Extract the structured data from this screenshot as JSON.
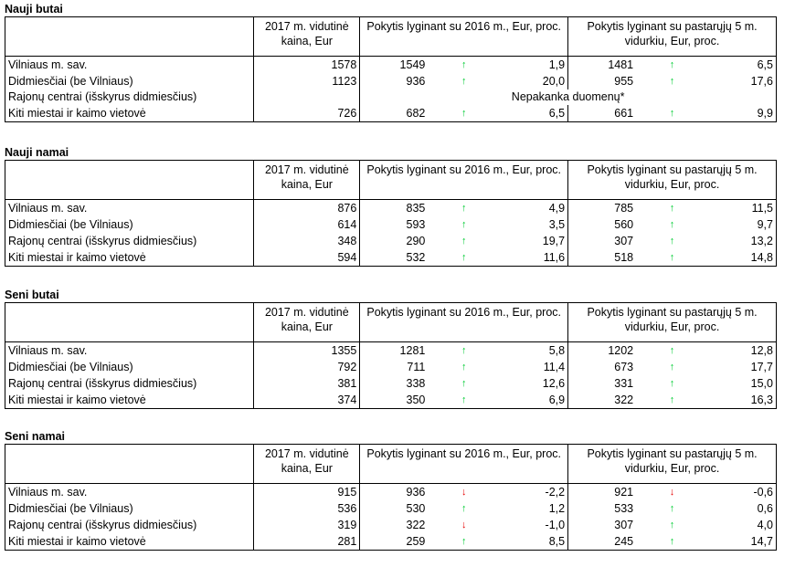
{
  "headers": {
    "price": "2017 m. vidutinė kaina, Eur",
    "change_2016": "Pokytis lyginant su 2016 m., Eur, proc.",
    "change_5y": "Pokytis lyginant su pastarųjų 5 m. vidurkiu, Eur, proc."
  },
  "sections": [
    {
      "title": "Nauji butai",
      "rows": [
        {
          "label": "Vilniaus m. sav.",
          "price": "1578",
          "v2016": "1549",
          "d2016": "up",
          "p2016": "1,9",
          "v5": "1481",
          "d5": "up",
          "p5": "6,5"
        },
        {
          "label": "Didmiesčiai (be Vilniaus)",
          "price": "1123",
          "v2016": "936",
          "d2016": "up",
          "p2016": "20,0",
          "v5": "955",
          "d5": "up",
          "p5": "17,6"
        },
        {
          "label": "Rajonų centrai (išskyrus didmiesčius)",
          "note": "Nepakanka duomenų*"
        },
        {
          "label": "Kiti miestai ir kaimo vietovė",
          "price": "726",
          "v2016": "682",
          "d2016": "up",
          "p2016": "6,5",
          "v5": "661",
          "d5": "up",
          "p5": "9,9"
        }
      ]
    },
    {
      "title": "Nauji namai",
      "rows": [
        {
          "label": "Vilniaus m. sav.",
          "price": "876",
          "v2016": "835",
          "d2016": "up",
          "p2016": "4,9",
          "v5": "785",
          "d5": "up",
          "p5": "11,5"
        },
        {
          "label": "Didmiesčiai (be Vilniaus)",
          "price": "614",
          "v2016": "593",
          "d2016": "up",
          "p2016": "3,5",
          "v5": "560",
          "d5": "up",
          "p5": "9,7"
        },
        {
          "label": "Rajonų centrai (išskyrus didmiesčius)",
          "price": "348",
          "v2016": "290",
          "d2016": "up",
          "p2016": "19,7",
          "v5": "307",
          "d5": "up",
          "p5": "13,2"
        },
        {
          "label": "Kiti miestai ir kaimo vietovė",
          "price": "594",
          "v2016": "532",
          "d2016": "up",
          "p2016": "11,6",
          "v5": "518",
          "d5": "up",
          "p5": "14,8"
        }
      ]
    },
    {
      "title": "Seni butai",
      "rows": [
        {
          "label": "Vilniaus m. sav.",
          "price": "1355",
          "v2016": "1281",
          "d2016": "up",
          "p2016": "5,8",
          "v5": "1202",
          "d5": "up",
          "p5": "12,8"
        },
        {
          "label": "Didmiesčiai (be Vilniaus)",
          "price": "792",
          "v2016": "711",
          "d2016": "up",
          "p2016": "11,4",
          "v5": "673",
          "d5": "up",
          "p5": "17,7"
        },
        {
          "label": "Rajonų centrai (išskyrus didmiesčius)",
          "price": "381",
          "v2016": "338",
          "d2016": "up",
          "p2016": "12,6",
          "v5": "331",
          "d5": "up",
          "p5": "15,0"
        },
        {
          "label": "Kiti miestai ir kaimo vietovė",
          "price": "374",
          "v2016": "350",
          "d2016": "up",
          "p2016": "6,9",
          "v5": "322",
          "d5": "up",
          "p5": "16,3"
        }
      ]
    },
    {
      "title": "Seni namai",
      "rows": [
        {
          "label": "Vilniaus m. sav.",
          "price": "915",
          "v2016": "936",
          "d2016": "down",
          "p2016": "-2,2",
          "v5": "921",
          "d5": "down",
          "p5": "-0,6"
        },
        {
          "label": "Didmiesčiai (be Vilniaus)",
          "price": "536",
          "v2016": "530",
          "d2016": "up",
          "p2016": "1,2",
          "v5": "533",
          "d5": "up",
          "p5": "0,6"
        },
        {
          "label": "Rajonų centrai (išskyrus didmiesčius)",
          "price": "319",
          "v2016": "322",
          "d2016": "down",
          "p2016": "-1,0",
          "v5": "307",
          "d5": "up",
          "p5": "4,0"
        },
        {
          "label": "Kiti miestai ir kaimo vietovė",
          "price": "281",
          "v2016": "259",
          "d2016": "up",
          "p2016": "8,5",
          "v5": "245",
          "d5": "up",
          "p5": "14,7"
        }
      ]
    }
  ],
  "colors": {
    "arrow_up": "#00cc33",
    "arrow_down": "#e60000"
  },
  "icons": {
    "up": "arrow-up-icon",
    "down": "arrow-down-icon"
  }
}
